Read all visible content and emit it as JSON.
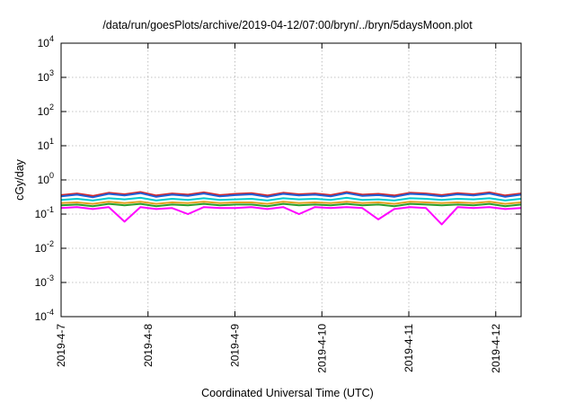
{
  "chart_data": {
    "type": "line",
    "title": "/data/run/goesPlots/archive/2019-04-12/07:00/bryn/../bryn/5daysMoon.plot",
    "xlabel": "Coordinated Universal Time (UTC)",
    "ylabel": "cGy/day",
    "yscale": "log",
    "ylim": [
      0.0001,
      10000
    ],
    "xlim": [
      "2019-04-07",
      "2019-04-12 07:00"
    ],
    "grid": true,
    "legend": "none",
    "ytick_exponents": [
      "4",
      "3",
      "2",
      "1",
      "0",
      "-1",
      "-2",
      "-3",
      "-4"
    ],
    "xticks": [
      "2019-4-7",
      "2019-4-8",
      "2019-4-9",
      "2019-4-10",
      "2019-4-11",
      "2019-4-12"
    ],
    "series": [
      {
        "color": "#d62728",
        "values": [
          0.36,
          0.4,
          0.34,
          0.42,
          0.38,
          0.44,
          0.35,
          0.4,
          0.37,
          0.43,
          0.36,
          0.39,
          0.41,
          0.35,
          0.42,
          0.38,
          0.4,
          0.36,
          0.44,
          0.37,
          0.39,
          0.35,
          0.42,
          0.4,
          0.36,
          0.41,
          0.38,
          0.43,
          0.35,
          0.4
        ]
      },
      {
        "color": "#1f5fd6",
        "values": [
          0.33,
          0.37,
          0.31,
          0.39,
          0.35,
          0.41,
          0.32,
          0.37,
          0.34,
          0.4,
          0.33,
          0.36,
          0.38,
          0.32,
          0.39,
          0.35,
          0.37,
          0.33,
          0.41,
          0.34,
          0.36,
          0.32,
          0.39,
          0.37,
          0.33,
          0.38,
          0.35,
          0.4,
          0.32,
          0.37
        ]
      },
      {
        "color": "#00c8d0",
        "values": [
          0.26,
          0.28,
          0.25,
          0.29,
          0.27,
          0.3,
          0.25,
          0.28,
          0.26,
          0.29,
          0.26,
          0.27,
          0.28,
          0.25,
          0.29,
          0.27,
          0.28,
          0.26,
          0.3,
          0.26,
          0.27,
          0.25,
          0.29,
          0.28,
          0.26,
          0.28,
          0.27,
          0.29,
          0.25,
          0.28
        ]
      },
      {
        "color": "#e8a020",
        "values": [
          0.21,
          0.22,
          0.2,
          0.23,
          0.21,
          0.23,
          0.2,
          0.22,
          0.21,
          0.23,
          0.21,
          0.22,
          0.22,
          0.2,
          0.23,
          0.21,
          0.22,
          0.21,
          0.23,
          0.21,
          0.22,
          0.2,
          0.23,
          0.22,
          0.21,
          0.22,
          0.21,
          0.23,
          0.2,
          0.22
        ]
      },
      {
        "color": "#2ca02c",
        "values": [
          0.18,
          0.19,
          0.17,
          0.2,
          0.18,
          0.2,
          0.17,
          0.19,
          0.18,
          0.2,
          0.18,
          0.19,
          0.19,
          0.17,
          0.2,
          0.18,
          0.19,
          0.18,
          0.2,
          0.18,
          0.19,
          0.17,
          0.2,
          0.19,
          0.18,
          0.19,
          0.18,
          0.2,
          0.17,
          0.19
        ]
      },
      {
        "color": "#ff00ff",
        "values": [
          0.15,
          0.16,
          0.14,
          0.16,
          0.06,
          0.16,
          0.14,
          0.15,
          0.1,
          0.16,
          0.15,
          0.15,
          0.16,
          0.14,
          0.16,
          0.1,
          0.16,
          0.15,
          0.16,
          0.15,
          0.07,
          0.14,
          0.16,
          0.15,
          0.05,
          0.16,
          0.15,
          0.16,
          0.14,
          0.15
        ]
      }
    ]
  }
}
